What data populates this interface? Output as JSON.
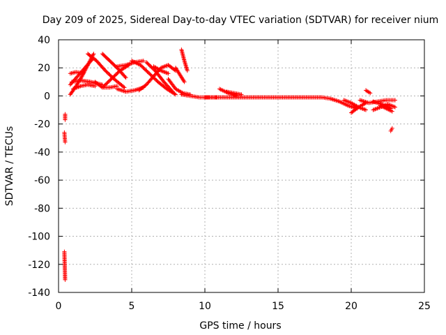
{
  "chart_data": {
    "type": "scatter",
    "title": "Day 209 of 2025, Sidereal Day-to-day VTEC variation (SDTVAR) for receiver nium",
    "xlabel": "GPS time / hours",
    "ylabel": "SDTVAR / TECUs",
    "xlim": [
      0,
      25
    ],
    "ylim": [
      -140,
      40
    ],
    "xticks": [
      0,
      5,
      10,
      15,
      20,
      25
    ],
    "xtick_labels": [
      "0",
      "5",
      "10",
      "15",
      "20",
      "25"
    ],
    "yticks": [
      -140,
      -120,
      -100,
      -80,
      -60,
      -40,
      -20,
      0,
      20,
      40
    ],
    "ytick_labels": [
      "-140",
      "-120",
      "-100",
      "-80",
      "-60",
      "-40",
      "-20",
      "0",
      "20",
      "40"
    ],
    "grid": true,
    "marker": "plus",
    "color": "#ff0000",
    "series": [
      {
        "name": "SDTVAR",
        "color": "#ff0000",
        "segments": [
          {
            "x": [
              0.45,
              0.45
            ],
            "y": [
              -13,
              -17
            ]
          },
          {
            "x": [
              0.4,
              0.45
            ],
            "y": [
              -26,
              -33
            ]
          },
          {
            "x": [
              0.4,
              0.45
            ],
            "y": [
              -111,
              -131
            ]
          },
          {
            "x": [
              0.8,
              1.2,
              1.6,
              2.0,
              2.4
            ],
            "y": [
              1,
              7,
              14,
              22,
              30
            ]
          },
          {
            "x": [
              0.8,
              1.3,
              1.8,
              2.3
            ],
            "y": [
              8,
              14,
              20,
              26
            ]
          },
          {
            "x": [
              0.8,
              1.2,
              1.7
            ],
            "y": [
              16,
              17,
              16
            ]
          },
          {
            "x": [
              0.9,
              1.5,
              2.2,
              3.0
            ],
            "y": [
              10,
              11,
              10,
              8
            ]
          },
          {
            "x": [
              1.0,
              1.5,
              2.0,
              2.5
            ],
            "y": [
              5,
              7,
              8,
              7
            ]
          },
          {
            "x": [
              2.0,
              2.6,
              3.2,
              3.8,
              4.5
            ],
            "y": [
              30,
              25,
              18,
              12,
              6
            ]
          },
          {
            "x": [
              2.5,
              3.0,
              3.5,
              4.0
            ],
            "y": [
              10,
              6,
              6,
              7
            ]
          },
          {
            "x": [
              3.0,
              3.5,
              4.0,
              4.6
            ],
            "y": [
              30,
              25,
              20,
              13
            ]
          },
          {
            "x": [
              3.0,
              3.6,
              4.2,
              4.8
            ],
            "y": [
              6,
              12,
              18,
              22
            ]
          },
          {
            "x": [
              4.0,
              4.6,
              5.2,
              5.8
            ],
            "y": [
              21,
              22,
              24,
              25
            ]
          },
          {
            "x": [
              4.0,
              4.6,
              5.2,
              5.8
            ],
            "y": [
              5,
              3,
              4,
              6
            ]
          },
          {
            "x": [
              5.0,
              5.6,
              6.2,
              6.8,
              7.4,
              8.0
            ],
            "y": [
              25,
              22,
              16,
              10,
              5,
              1
            ]
          },
          {
            "x": [
              5.5,
              6.0,
              6.5,
              7.0,
              7.5,
              8.0
            ],
            "y": [
              4,
              8,
              14,
              20,
              22,
              18
            ]
          },
          {
            "x": [
              6.0,
              6.6,
              7.2,
              7.8
            ],
            "y": [
              24,
              18,
              10,
              3
            ]
          },
          {
            "x": [
              6.5,
              7.0,
              7.5
            ],
            "y": [
              21,
              18,
              16
            ]
          },
          {
            "x": [
              7.5,
              8.0,
              8.5,
              9.0
            ],
            "y": [
              12,
              5,
              2,
              1
            ]
          },
          {
            "x": [
              8.0,
              8.3,
              8.6
            ],
            "y": [
              20,
              15,
              10
            ]
          },
          {
            "x": [
              8.4,
              8.6,
              8.8
            ],
            "y": [
              33,
              25,
              18
            ]
          },
          {
            "x": [
              8.4,
              9.0,
              9.6,
              10.2,
              10.8
            ],
            "y": [
              1,
              0,
              -1,
              -1,
              -1
            ]
          },
          {
            "x": [
              10.0,
              11.0,
              12.0,
              13.0,
              14.0,
              15.0,
              16.0,
              17.0,
              18.0
            ],
            "y": [
              -1,
              -1,
              -1,
              -1,
              -1,
              -1,
              -1,
              -1,
              -1
            ]
          },
          {
            "x": [
              11.0,
              11.6,
              12.2
            ],
            "y": [
              5,
              2,
              0
            ]
          },
          {
            "x": [
              11.5,
              12.0,
              12.5
            ],
            "y": [
              3,
              2,
              1
            ]
          },
          {
            "x": [
              18.0,
              18.6,
              19.2,
              19.8,
              20.4
            ],
            "y": [
              -1,
              -2,
              -4,
              -7,
              -9
            ]
          },
          {
            "x": [
              19.5,
              20.0,
              20.5,
              21.0
            ],
            "y": [
              -3,
              -5,
              -8,
              -10
            ]
          },
          {
            "x": [
              20.0,
              20.5,
              21.0
            ],
            "y": [
              -12,
              -8,
              -5
            ]
          },
          {
            "x": [
              20.6,
              21.2,
              21.8,
              22.4,
              23.0
            ],
            "y": [
              -3,
              -5,
              -4,
              -3,
              -3
            ]
          },
          {
            "x": [
              21.0,
              21.3
            ],
            "y": [
              4,
              2
            ]
          },
          {
            "x": [
              21.5,
              22.0,
              22.5,
              23.0
            ],
            "y": [
              -10,
              -8,
              -6,
              -8
            ]
          },
          {
            "x": [
              21.5,
              22.1,
              22.7
            ],
            "y": [
              -4,
              -6,
              -9
            ]
          },
          {
            "x": [
              22.0,
              22.4,
              22.8
            ],
            "y": [
              -7,
              -9,
              -11
            ]
          },
          {
            "x": [
              22.7,
              22.8
            ],
            "y": [
              -25,
              -23
            ]
          }
        ]
      }
    ]
  }
}
